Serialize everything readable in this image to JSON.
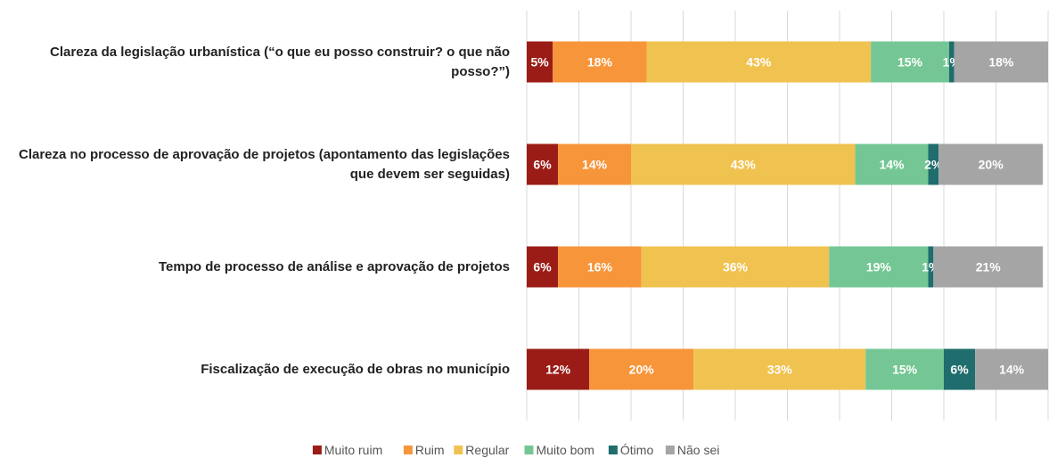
{
  "chart_data": {
    "type": "stacked-bar-horizontal",
    "categories": [
      "Clareza da legislação urbanística (“o que eu posso construir? o que não posso?”)",
      "Clareza no processo de aprovação de projetos (apontamento das legislações que devem ser seguidas)",
      "Tempo de processo de análise e aprovação de projetos",
      "Fiscalização de execução de obras no município"
    ],
    "series": [
      {
        "name": "Muito ruim",
        "color": "#9b1c16",
        "values": [
          5,
          6,
          6,
          12
        ],
        "value_labels": [
          "5%",
          "6%",
          "6%",
          "12%"
        ]
      },
      {
        "name": "Ruim",
        "color": "#f7953a",
        "values": [
          18,
          14,
          16,
          20
        ],
        "value_labels": [
          "18%",
          "14%",
          "16%",
          "20%"
        ]
      },
      {
        "name": "Regular",
        "color": "#f0c250",
        "values": [
          43,
          43,
          36,
          33
        ],
        "value_labels": [
          "43%",
          "43%",
          "36%",
          "33%"
        ]
      },
      {
        "name": "Muito bom",
        "color": "#74c794",
        "values": [
          15,
          14,
          19,
          15
        ],
        "value_labels": [
          "15%",
          "14%",
          "19%",
          "15%"
        ]
      },
      {
        "name": "Ótimo",
        "color": "#1f6d6d",
        "values": [
          1,
          2,
          1,
          6
        ],
        "value_labels": [
          "1%",
          "2%",
          "1%",
          "6%"
        ]
      },
      {
        "name": "Não sei",
        "color": "#a5a5a5",
        "values": [
          18,
          20,
          21,
          14
        ],
        "value_labels": [
          "18%",
          "20%",
          "21%",
          "14%"
        ]
      }
    ],
    "xlim": [
      0,
      100
    ],
    "xticks": [
      0,
      10,
      20,
      30,
      40,
      50,
      60,
      70,
      80,
      90,
      100
    ],
    "grid": true,
    "legend": "bottom"
  }
}
